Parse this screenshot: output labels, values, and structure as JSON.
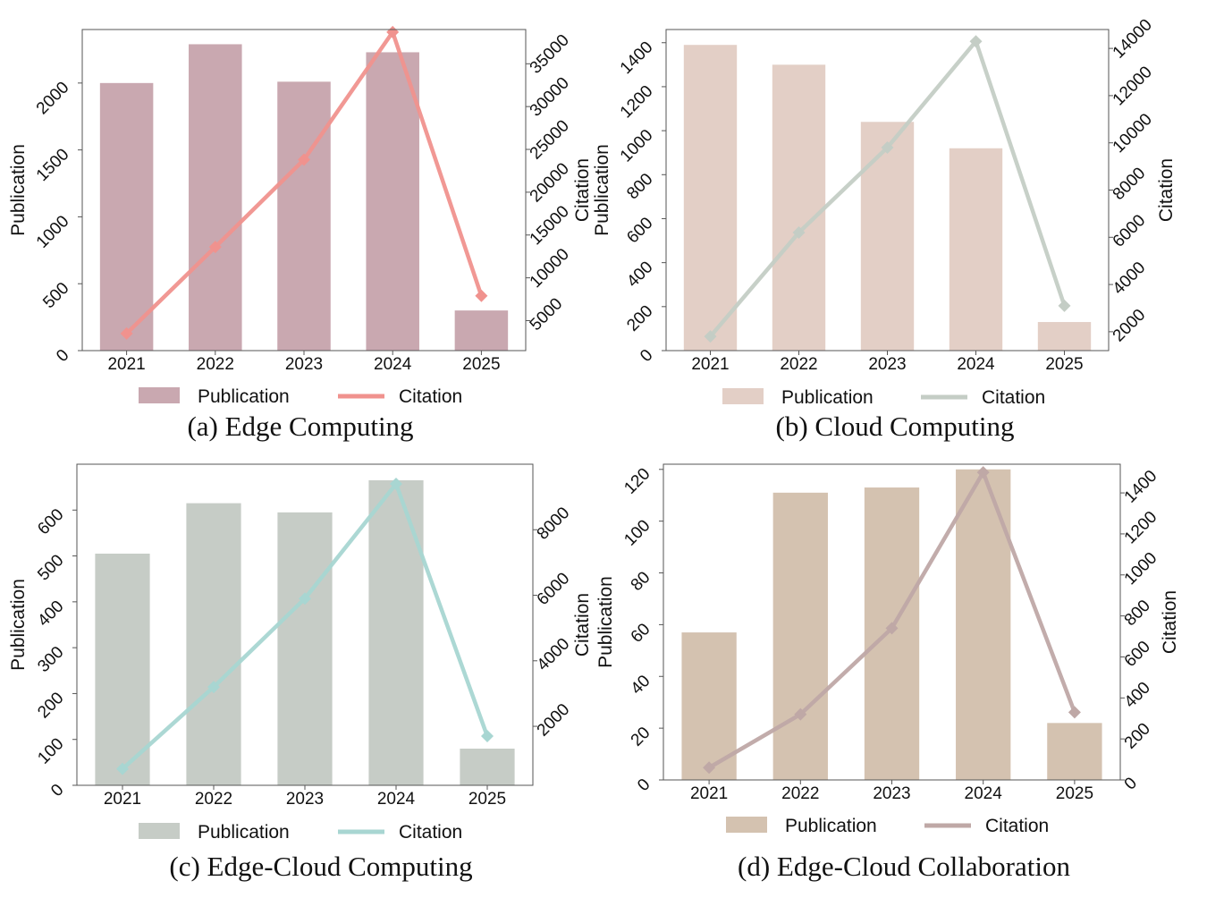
{
  "chart_data": [
    {
      "type": "bar",
      "caption": "(a) Edge Computing",
      "categories": [
        "2021",
        "2022",
        "2023",
        "2024",
        "2025"
      ],
      "ylabel": "Publication",
      "y2label": "Citation",
      "ylim": [
        0,
        2400
      ],
      "y2lim": [
        1500,
        39000
      ],
      "yticks": [
        0,
        500,
        1000,
        1500,
        2000
      ],
      "y2ticks": [
        5000,
        10000,
        15000,
        20000,
        25000,
        30000,
        35000
      ],
      "series": [
        {
          "name": "Publication",
          "kind": "bar",
          "axis": "left",
          "values": [
            2000,
            2290,
            2010,
            2230,
            300
          ]
        },
        {
          "name": "Citation",
          "kind": "line",
          "axis": "right",
          "values": [
            3500,
            13600,
            23800,
            38700,
            7900
          ]
        }
      ],
      "colors": {
        "bar": "#c9a8b0",
        "line": "#f0928e"
      },
      "legend": "bottom",
      "grid": false
    },
    {
      "type": "bar",
      "caption": "(b) Cloud Computing",
      "categories": [
        "2021",
        "2022",
        "2023",
        "2024",
        "2025"
      ],
      "ylabel": "Publication",
      "y2label": "Citation",
      "ylim": [
        0,
        1460
      ],
      "y2lim": [
        1200,
        14800
      ],
      "yticks": [
        0,
        200,
        400,
        600,
        800,
        1000,
        1200,
        1400
      ],
      "y2ticks": [
        2000,
        4000,
        6000,
        8000,
        10000,
        12000,
        14000
      ],
      "series": [
        {
          "name": "Publication",
          "kind": "bar",
          "axis": "left",
          "values": [
            1390,
            1300,
            1040,
            920,
            130
          ]
        },
        {
          "name": "Citation",
          "kind": "line",
          "axis": "right",
          "values": [
            1800,
            6200,
            9800,
            14300,
            3100
          ]
        }
      ],
      "colors": {
        "bar": "#e3cfc6",
        "line": "#c4cdc5"
      },
      "legend": "bottom",
      "grid": false
    },
    {
      "type": "bar",
      "caption": "(c) Edge-Cloud Computing",
      "categories": [
        "2021",
        "2022",
        "2023",
        "2024",
        "2025"
      ],
      "ylabel": "Publication",
      "y2label": "Citation",
      "ylim": [
        0,
        700
      ],
      "y2lim": [
        200,
        10000
      ],
      "yticks": [
        0,
        100,
        200,
        300,
        400,
        500,
        600
      ],
      "y2ticks": [
        2000,
        4000,
        6000,
        8000
      ],
      "series": [
        {
          "name": "Publication",
          "kind": "bar",
          "axis": "left",
          "values": [
            505,
            615,
            595,
            665,
            80
          ]
        },
        {
          "name": "Citation",
          "kind": "line",
          "axis": "right",
          "values": [
            700,
            3200,
            5900,
            9400,
            1700
          ]
        }
      ],
      "colors": {
        "bar": "#c6ccc6",
        "line": "#a8d6d2"
      },
      "legend": "bottom",
      "grid": false
    },
    {
      "type": "bar",
      "caption": "(d) Edge-Cloud Collaboration",
      "categories": [
        "2021",
        "2022",
        "2023",
        "2024",
        "2025"
      ],
      "ylabel": "Publication",
      "y2label": "Citation",
      "ylim": [
        0,
        122
      ],
      "y2lim": [
        0,
        1540
      ],
      "yticks": [
        0,
        20,
        40,
        60,
        80,
        100,
        120
      ],
      "y2ticks": [
        0,
        200,
        400,
        600,
        800,
        1000,
        1200,
        1400
      ],
      "series": [
        {
          "name": "Publication",
          "kind": "bar",
          "axis": "left",
          "values": [
            57,
            111,
            113,
            120,
            22
          ]
        },
        {
          "name": "Citation",
          "kind": "line",
          "axis": "right",
          "values": [
            60,
            320,
            740,
            1500,
            330
          ]
        }
      ],
      "colors": {
        "bar": "#d4c2b0",
        "line": "#bfa8a6"
      },
      "legend": "bottom",
      "grid": false
    }
  ]
}
